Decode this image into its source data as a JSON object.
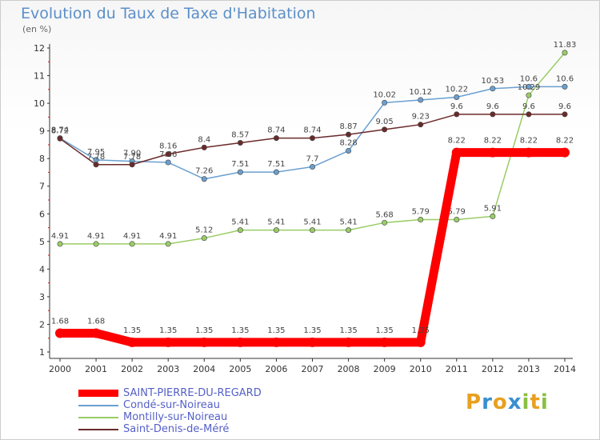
{
  "chart_data": {
    "type": "line",
    "title": "Evolution du Taux de Taxe d'Habitation",
    "unit_label": "(en %)",
    "x": [
      "2000",
      "2001",
      "2002",
      "2003",
      "2004",
      "2005",
      "2006",
      "2007",
      "2008",
      "2009",
      "2010",
      "2011",
      "2012",
      "2013",
      "2014"
    ],
    "yticks": [
      "1",
      "2",
      "3",
      "4",
      "5",
      "6",
      "7",
      "8",
      "9",
      "10",
      "11",
      "12"
    ],
    "ylim": [
      1,
      12
    ],
    "grid": false,
    "legend_position": "bottom-left",
    "series": [
      {
        "name": "SAINT-PIERRE-DU-REGARD",
        "color": "#ff0000",
        "values": [
          1.68,
          1.68,
          1.35,
          1.35,
          1.35,
          1.35,
          1.35,
          1.35,
          1.35,
          1.35,
          1.35,
          8.22,
          8.22,
          8.22,
          8.22
        ],
        "labels": [
          "1.68",
          "1.68",
          "1.35",
          "1.35",
          "1.35",
          "1.35",
          "1.35",
          "1.35",
          "1.35",
          "1.35",
          "1.35",
          "8.22",
          "8.22",
          "8.22",
          "8.22"
        ]
      },
      {
        "name": "Condé-sur-Noireau",
        "color": "#6aa0d0",
        "values": [
          8.74,
          7.95,
          7.9,
          7.86,
          7.26,
          7.51,
          7.51,
          7.7,
          8.28,
          10.02,
          10.12,
          10.22,
          10.53,
          10.6,
          10.6
        ],
        "labels": [
          "8.74",
          "7.95",
          "7.90",
          "7.86",
          "7.26",
          "7.51",
          "7.51",
          "7.7",
          "8.28",
          "10.02",
          "10.12",
          "10.22",
          "10.53",
          "10.6",
          "10.6"
        ]
      },
      {
        "name": "Montilly-sur-Noireau",
        "color": "#99cc66",
        "values": [
          4.91,
          4.91,
          4.91,
          4.91,
          5.12,
          5.41,
          5.41,
          5.41,
          5.41,
          5.68,
          5.79,
          5.79,
          5.91,
          10.29,
          11.83
        ],
        "labels": [
          "4.91",
          "4.91",
          "4.91",
          "4.91",
          "5.12",
          "5.41",
          "5.41",
          "5.41",
          "5.41",
          "5.68",
          "5.79",
          "5.79",
          "5.91",
          "10.29",
          "11.83"
        ]
      },
      {
        "name": "Saint-Denis-de-Méré",
        "color": "#6b2a2a",
        "values": [
          8.72,
          7.78,
          7.78,
          8.16,
          8.4,
          8.57,
          8.74,
          8.74,
          8.87,
          9.05,
          9.23,
          9.6,
          9.6,
          9.6,
          9.6
        ],
        "labels": [
          "8.72",
          "7.78",
          "7.78",
          "8.16",
          "8.4",
          "8.57",
          "8.74",
          "8.74",
          "8.87",
          "9.05",
          "9.23",
          "9.6",
          "9.6",
          "9.6",
          "9.6"
        ]
      }
    ]
  },
  "logo": {
    "letters": [
      "P",
      "r",
      "o",
      "x",
      "i",
      "t",
      "i"
    ],
    "colors": [
      "#e8a020",
      "#3a8fd0",
      "#e8a020",
      "#3a8fd0",
      "#88c040",
      "#e8a020",
      "#88c040"
    ]
  }
}
